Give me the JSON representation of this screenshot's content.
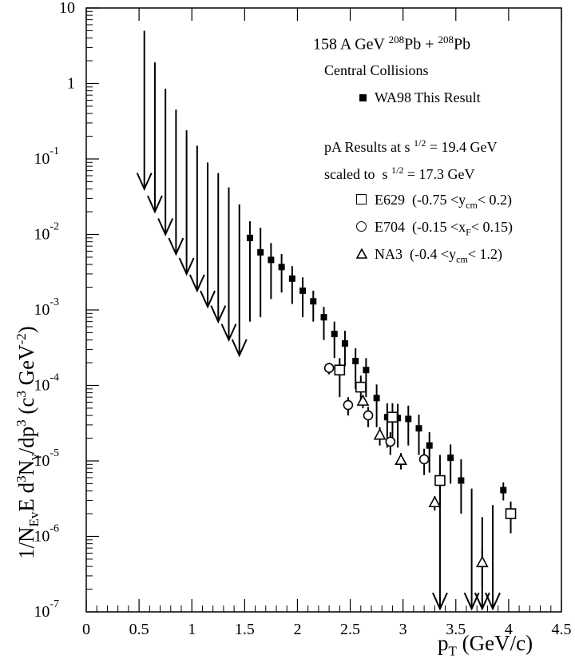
{
  "chart_data": {
    "type": "scatter",
    "title": "",
    "xlabel": "p_T (GeV/c)",
    "ylabel": "1/N_Ev E d^3N_γ/dp^3 (c^3 GeV^-2)",
    "xlim": [
      0,
      4.5
    ],
    "ylim": [
      1e-07,
      10
    ],
    "y_scale": "log",
    "grid": false,
    "x_ticks": [
      "0",
      "0.5",
      "1",
      "1.5",
      "2",
      "2.5",
      "3",
      "3.5",
      "4",
      "4.5"
    ],
    "y_ticks": [
      "10^-7",
      "10^-6",
      "10^-5",
      "10^-4",
      "10^-3",
      "10^-2",
      "10^-1",
      "1",
      "10"
    ],
    "annotation_lines": [
      "158 A GeV  ²⁰⁸Pb + ²⁰⁸Pb",
      "Central Collisions",
      "pA Results at s^1/2 = 19.4 GeV",
      "scaled to s^1/2 = 17.3 GeV"
    ],
    "legend_location": "top-right",
    "series": [
      {
        "name": "WA98 This Result",
        "marker": "filled-square",
        "upper_limits": [
          {
            "x": 0.55,
            "top": 5.0,
            "bottom": 0.04
          },
          {
            "x": 0.65,
            "top": 1.9,
            "bottom": 0.02
          },
          {
            "x": 0.75,
            "top": 0.85,
            "bottom": 0.01
          },
          {
            "x": 0.85,
            "top": 0.45,
            "bottom": 0.0055
          },
          {
            "x": 0.95,
            "top": 0.24,
            "bottom": 0.003
          },
          {
            "x": 1.05,
            "top": 0.15,
            "bottom": 0.0018
          },
          {
            "x": 1.15,
            "top": 0.09,
            "bottom": 0.0011
          },
          {
            "x": 1.25,
            "top": 0.065,
            "bottom": 0.0007
          },
          {
            "x": 1.35,
            "top": 0.042,
            "bottom": 0.0004
          },
          {
            "x": 1.45,
            "top": 0.025,
            "bottom": 0.00025
          },
          {
            "x": 3.35,
            "top": 1.2e-05,
            "bottom": 1.1e-07
          },
          {
            "x": 3.65,
            "top": 4.3e-06,
            "bottom": 1.1e-07
          },
          {
            "x": 3.75,
            "top": 1.8e-06,
            "bottom": 1.1e-07
          },
          {
            "x": 3.85,
            "top": 2.6e-06,
            "bottom": 1.1e-07
          }
        ],
        "points": [
          {
            "x": 1.55,
            "y": 0.009,
            "y_err_low": 0.0083,
            "y_err_high": 0.006
          },
          {
            "x": 1.65,
            "y": 0.0058,
            "y_err_low": 0.005,
            "y_err_high": 0.0065
          },
          {
            "x": 1.75,
            "y": 0.0046,
            "y_err_low": 0.0032,
            "y_err_high": 0.0031
          },
          {
            "x": 1.85,
            "y": 0.0037,
            "y_err_low": 0.002,
            "y_err_high": 0.0018
          },
          {
            "x": 1.95,
            "y": 0.0026,
            "y_err_low": 0.0014,
            "y_err_high": 0.0012
          },
          {
            "x": 2.05,
            "y": 0.0018,
            "y_err_low": 0.001,
            "y_err_high": 0.0009
          },
          {
            "x": 2.15,
            "y": 0.0013,
            "y_err_low": 0.0006,
            "y_err_high": 0.0005
          },
          {
            "x": 2.25,
            "y": 0.0008,
            "y_err_low": 0.0004,
            "y_err_high": 0.0003
          },
          {
            "x": 2.35,
            "y": 0.00048,
            "y_err_low": 0.00025,
            "y_err_high": 0.00022
          },
          {
            "x": 2.45,
            "y": 0.00036,
            "y_err_low": 0.00018,
            "y_err_high": 0.00017
          },
          {
            "x": 2.55,
            "y": 0.00021,
            "y_err_low": 0.00012,
            "y_err_high": 0.0001
          },
          {
            "x": 2.65,
            "y": 0.00016,
            "y_err_low": 9e-05,
            "y_err_high": 7e-05
          },
          {
            "x": 2.75,
            "y": 6.8e-05,
            "y_err_low": 4e-05,
            "y_err_high": 3.5e-05
          },
          {
            "x": 2.85,
            "y": 3.8e-05,
            "y_err_low": 2.3e-05,
            "y_err_high": 2e-05
          },
          {
            "x": 2.95,
            "y": 3.7e-05,
            "y_err_low": 2.2e-05,
            "y_err_high": 2e-05
          },
          {
            "x": 3.05,
            "y": 3.6e-05,
            "y_err_low": 2e-05,
            "y_err_high": 1.8e-05
          },
          {
            "x": 3.15,
            "y": 2.7e-05,
            "y_err_low": 1.5e-05,
            "y_err_high": 1.4e-05
          },
          {
            "x": 3.25,
            "y": 1.6e-05,
            "y_err_low": 9e-06,
            "y_err_high": 8e-06
          },
          {
            "x": 3.45,
            "y": 1.1e-05,
            "y_err_low": 6e-06,
            "y_err_high": 5.5e-06
          },
          {
            "x": 3.55,
            "y": 5.5e-06,
            "y_err_low": 3.5e-06,
            "y_err_high": 5e-06
          },
          {
            "x": 3.95,
            "y": 4.1e-06,
            "y_err_low": 1.1e-06,
            "y_err_high": 1.1e-06
          }
        ]
      },
      {
        "name": "E629  (-0.75 <y_cm < 0.2)",
        "marker": "open-square",
        "points": [
          {
            "x": 2.4,
            "y": 0.00016,
            "y_err_low": 9e-05,
            "y_err_high": 7e-05
          },
          {
            "x": 2.6,
            "y": 9.5e-05,
            "y_err_low": 4e-05,
            "y_err_high": 4e-05
          },
          {
            "x": 2.9,
            "y": 3.8e-05,
            "y_err_low": 2e-05,
            "y_err_high": 2e-05
          },
          {
            "x": 3.35,
            "y": 5.5e-06,
            "y_err_low": 3e-06,
            "y_err_high": 3e-06
          },
          {
            "x": 4.02,
            "y": 2e-06,
            "y_err_low": 9e-07,
            "y_err_high": 9e-07
          }
        ]
      },
      {
        "name": "E704  (-0.15 <x_F < 0.15)",
        "marker": "open-circle",
        "points": [
          {
            "x": 2.3,
            "y": 0.00017,
            "y_err_low": 3e-05,
            "y_err_high": 3e-05
          },
          {
            "x": 2.48,
            "y": 5.5e-05,
            "y_err_low": 1.5e-05,
            "y_err_high": 1.5e-05
          },
          {
            "x": 2.67,
            "y": 4e-05,
            "y_err_low": 1.2e-05,
            "y_err_high": 1.2e-05
          },
          {
            "x": 2.88,
            "y": 1.8e-05,
            "y_err_low": 6e-06,
            "y_err_high": 6e-06
          },
          {
            "x": 3.2,
            "y": 1.05e-05,
            "y_err_low": 4e-06,
            "y_err_high": 4e-06
          }
        ]
      },
      {
        "name": "NA3  (-0.4 <y_cm < 1.2)",
        "marker": "open-triangle",
        "points": [
          {
            "x": 2.62,
            "y": 6.2e-05,
            "y_err_low": 1.2e-05,
            "y_err_high": 1.2e-05
          },
          {
            "x": 2.78,
            "y": 2.2e-05,
            "y_err_low": 6e-06,
            "y_err_high": 6e-06
          },
          {
            "x": 2.98,
            "y": 1.02e-05,
            "y_err_low": 2.5e-06,
            "y_err_high": 2.5e-06
          },
          {
            "x": 3.3,
            "y": 2.8e-06,
            "y_err_low": 6e-07,
            "y_err_high": 6e-07
          },
          {
            "x": 3.75,
            "y": 4.5e-07,
            "y_err_low": 2.3e-07,
            "y_err_high": 2.3e-07
          }
        ]
      }
    ]
  }
}
